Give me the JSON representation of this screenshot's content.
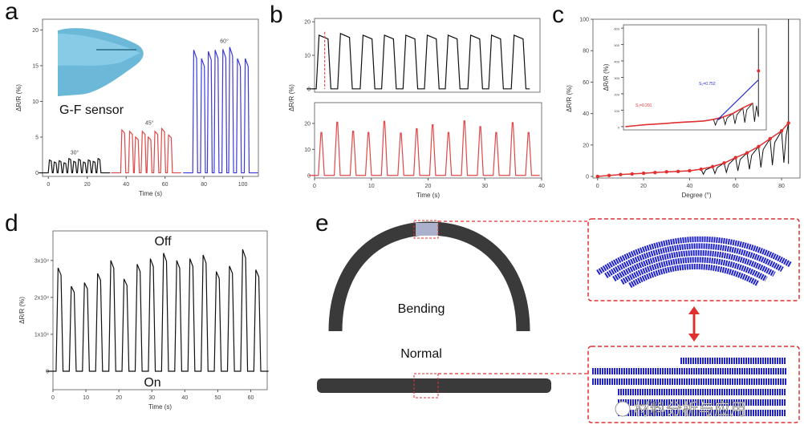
{
  "panels": {
    "a": "a",
    "b": "b",
    "c": "c",
    "d": "d",
    "e": "e"
  },
  "chart_data": [
    {
      "panel": "a",
      "type": "line",
      "xlabel": "Time (s)",
      "ylabel": "ΔR/R (%)",
      "xlim": [
        -3,
        108
      ],
      "ylim": [
        -0.5,
        21.5
      ],
      "xticks": [
        0,
        20,
        40,
        60,
        80,
        100
      ],
      "yticks": [
        0,
        5,
        10,
        15,
        20
      ],
      "inset_label": "G-F sensor",
      "series": [
        {
          "name": "30°",
          "color": "#111111",
          "peaks": [
            [
              1,
              1.8
            ],
            [
              3.5,
              1.5
            ],
            [
              6,
              1.7
            ],
            [
              8.5,
              1.4
            ],
            [
              11,
              2
            ],
            [
              13.5,
              1.6
            ],
            [
              16,
              1.9
            ],
            [
              18.5,
              1.5
            ],
            [
              21,
              1.8
            ],
            [
              23.5,
              1.6
            ],
            [
              26,
              2
            ]
          ]
        },
        {
          "name": "45°",
          "color": "#e04848",
          "peaks": [
            [
              38.5,
              6
            ],
            [
              42.5,
              5.8
            ],
            [
              45.5,
              5
            ],
            [
              49,
              5.8
            ],
            [
              52,
              5
            ],
            [
              55.5,
              5.8
            ],
            [
              59,
              6.2
            ],
            [
              62.5,
              5.3
            ]
          ]
        },
        {
          "name": "60°",
          "color": "#3a3adc",
          "peaks": [
            [
              75.5,
              17.2
            ],
            [
              79.5,
              16
            ],
            [
              83,
              17
            ],
            [
              86.5,
              17.2
            ],
            [
              90.5,
              17.3
            ],
            [
              94,
              17.6
            ],
            [
              98,
              16
            ],
            [
              102,
              16
            ]
          ]
        }
      ]
    },
    {
      "panel": "b-top",
      "type": "line",
      "ylabel": "ΔR/R (%)",
      "xlim": [
        0,
        40
      ],
      "ylim": [
        -1,
        21
      ],
      "yticks": [
        0,
        10,
        20
      ],
      "color": "#111111",
      "peaks": [
        [
          1.6,
          16
        ],
        [
          5.4,
          16.5
        ],
        [
          9.4,
          16
        ],
        [
          13.2,
          16
        ],
        [
          17,
          16
        ],
        [
          20.8,
          16
        ],
        [
          24.5,
          16
        ],
        [
          28.5,
          16
        ],
        [
          32.2,
          16
        ],
        [
          36.2,
          16
        ]
      ]
    },
    {
      "panel": "b-bottom",
      "type": "line",
      "xlabel": "Time (s)",
      "xlim": [
        0,
        40
      ],
      "ylim": [
        -1,
        28
      ],
      "xticks": [
        0,
        10,
        20,
        30,
        40
      ],
      "yticks": [
        0,
        10,
        20
      ],
      "color": "#e04848",
      "peaks": [
        [
          1.2,
          16.5
        ],
        [
          4,
          20.5
        ],
        [
          6.8,
          17
        ],
        [
          9.5,
          16.5
        ],
        [
          12.3,
          20.8
        ],
        [
          15.2,
          16.3
        ],
        [
          18,
          18
        ],
        [
          20.8,
          19.5
        ],
        [
          23.6,
          16.5
        ],
        [
          26.4,
          21
        ],
        [
          29.2,
          18.8
        ],
        [
          32,
          16.5
        ],
        [
          34.9,
          20.3
        ],
        [
          37.7,
          16.5
        ]
      ]
    },
    {
      "panel": "c",
      "type": "line",
      "xlabel": "Degree (°)",
      "ylabel": "ΔR/R (%)",
      "xlim": [
        -2,
        88
      ],
      "ylim": [
        -1,
        100
      ],
      "xticks": [
        0,
        20,
        40,
        60,
        80
      ],
      "yticks": [
        0,
        20,
        40,
        60,
        80,
        100
      ],
      "fit_color": "#e03030",
      "data_color": "#111111",
      "points": [
        [
          0,
          0
        ],
        [
          5,
          0.6
        ],
        [
          10,
          1.2
        ],
        [
          15,
          1.6
        ],
        [
          20,
          2
        ],
        [
          25,
          2.5
        ],
        [
          30,
          2.9
        ],
        [
          35,
          3.2
        ],
        [
          40,
          3.6
        ],
        [
          45,
          4.6
        ],
        [
          50,
          6.2
        ],
        [
          55,
          8.5
        ],
        [
          60,
          12
        ],
        [
          65,
          15
        ],
        [
          70,
          19
        ],
        [
          75,
          24
        ],
        [
          80,
          29
        ],
        [
          83,
          34
        ]
      ],
      "inset": {
        "ylabel": "ΔR/R (%)",
        "ylim": [
          -20,
          620
        ],
        "yticks": [
          0,
          100,
          200,
          300,
          400,
          500,
          600
        ],
        "s1_label": "S₁=0.201",
        "s2_label": "S₂=0.752",
        "s1_color": "#e03030",
        "s2_color": "#2a2ad8"
      }
    },
    {
      "panel": "d",
      "type": "line",
      "xlabel": "Time (s)",
      "ylabel": "ΔR/R (%)",
      "xlim": [
        0,
        65
      ],
      "ylim": [
        -5000,
        38000
      ],
      "xticks": [
        0,
        10,
        20,
        30,
        40,
        50,
        60
      ],
      "yticks": [
        0,
        10000,
        20000,
        30000
      ],
      "ytick_labels": [
        "0",
        "1x10⁴",
        "2x10⁴",
        "3x10⁴"
      ],
      "color": "#111111",
      "annotations": {
        "top": "Off",
        "bottom": "On"
      },
      "peaks": [
        [
          2,
          28000
        ],
        [
          6,
          23000
        ],
        [
          10,
          24000
        ],
        [
          14,
          26500
        ],
        [
          18,
          30000
        ],
        [
          22,
          25000
        ],
        [
          26,
          29000
        ],
        [
          30,
          30500
        ],
        [
          34,
          32000
        ],
        [
          38,
          30000
        ],
        [
          42,
          30500
        ],
        [
          46,
          31500
        ],
        [
          50,
          27000
        ],
        [
          54,
          28500
        ],
        [
          58,
          33000
        ],
        [
          62,
          27500
        ]
      ]
    }
  ],
  "diagram_e": {
    "bending_label": "Bending",
    "normal_label": "Normal",
    "accent": "#e03030",
    "fiber": "#3a3a3a",
    "molecule": "#1f22c8"
  },
  "watermark": "材料分析与应用"
}
